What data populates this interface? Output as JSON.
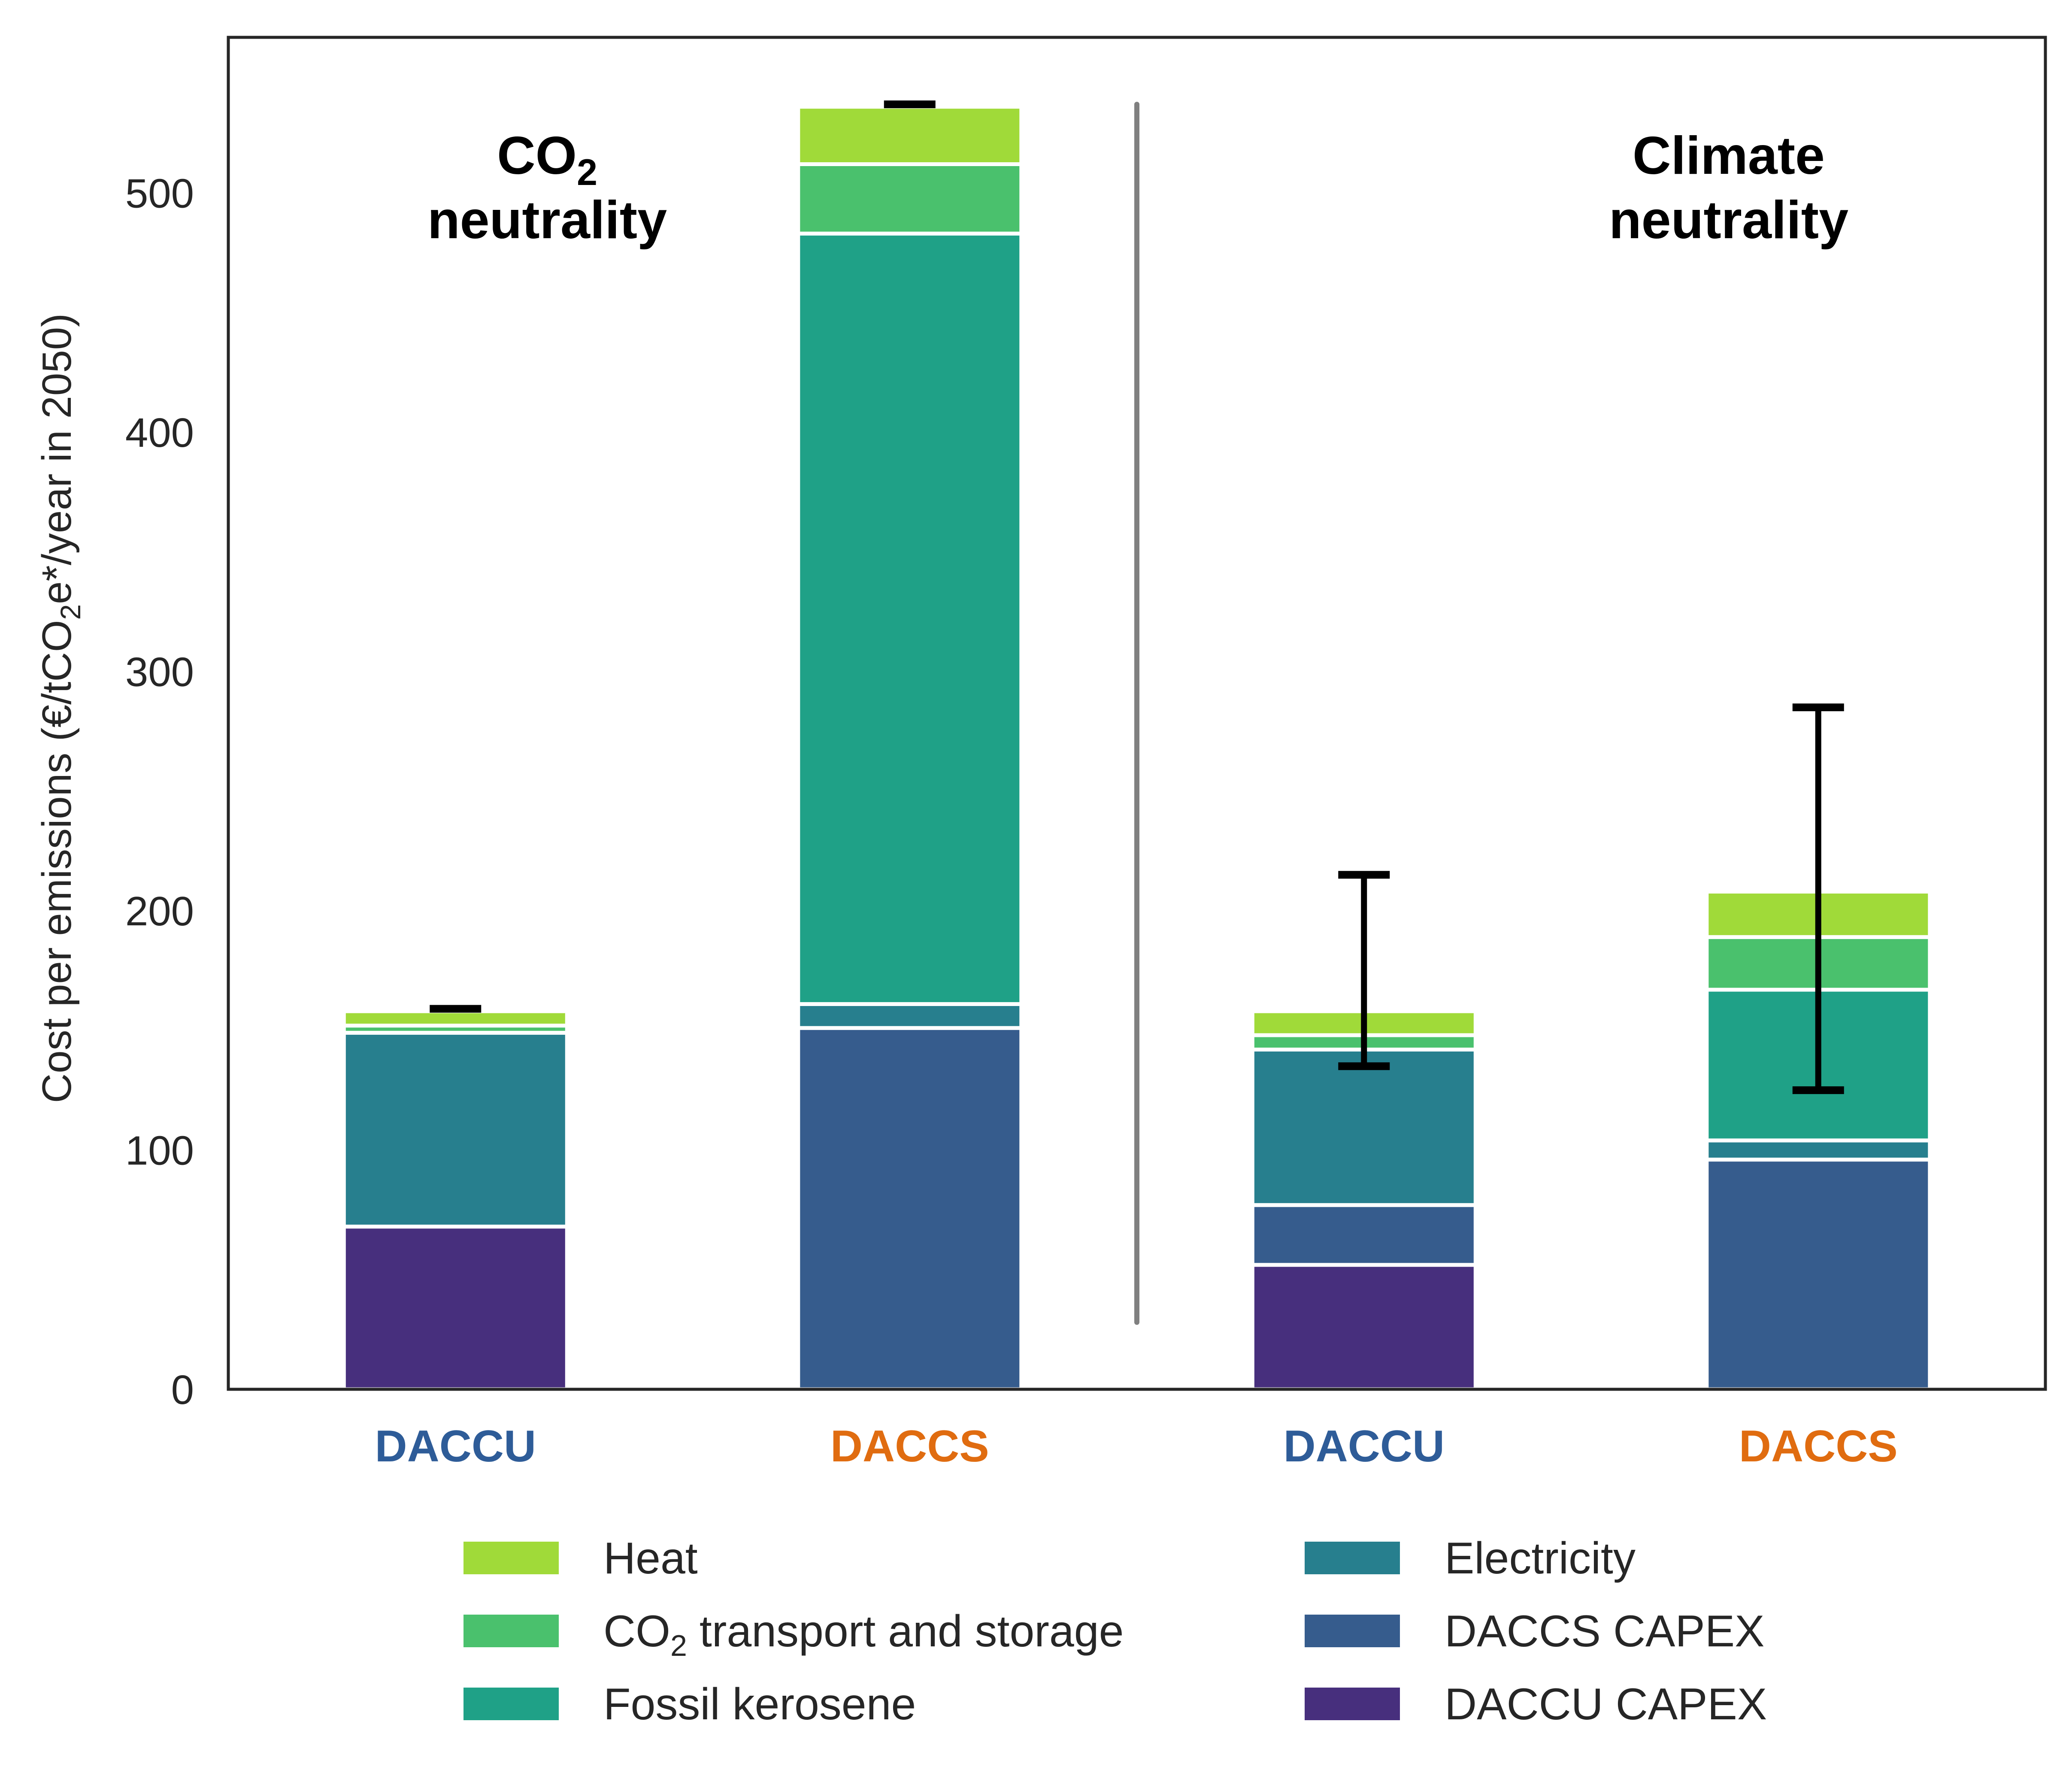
{
  "chart_data": {
    "type": "bar",
    "stacked": true,
    "title": "",
    "xlabel": "",
    "ylabel_parts": [
      "Cost per emissions (€/tCO",
      "2",
      "e*/year in 2050)"
    ],
    "ylim": [
      0,
      565
    ],
    "yticks": [
      "0",
      "100",
      "200",
      "300",
      "400",
      "500"
    ],
    "grid": false,
    "categories": [
      {
        "label": "DACCU",
        "color": "#2e5c98"
      },
      {
        "label": "DACCS",
        "color": "#e06c10"
      },
      {
        "label": "DACCU",
        "color": "#2e5c98"
      },
      {
        "label": "DACCS",
        "color": "#e06c10"
      }
    ],
    "group_titles": [
      {
        "parts": [
          "CO",
          "2"
        ],
        "line2": "neutrality"
      },
      {
        "parts": [
          "Climate"
        ],
        "line2": "neutrality"
      }
    ],
    "series": [
      {
        "name": "DACCU CAPEX",
        "color": "#472f7d",
        "values": [
          68,
          0,
          52,
          0
        ]
      },
      {
        "name": "DACCS CAPEX",
        "color": "#365c8d",
        "values": [
          0,
          151,
          25,
          96
        ]
      },
      {
        "name": "Electricity",
        "color": "#277f8e",
        "values": [
          81,
          10,
          65,
          8
        ]
      },
      {
        "name": "Fossil kerosene",
        "color": "#1fa187",
        "values": [
          0,
          322,
          0,
          63
        ]
      },
      {
        "name": "CO2 transport and storage",
        "color": "#4ac16d",
        "values": [
          3,
          29,
          6,
          22
        ]
      },
      {
        "name": "Heat",
        "color": "#a0da39",
        "values": [
          6,
          24,
          10,
          19
        ]
      }
    ],
    "error_bars": [
      {
        "low": 159,
        "high": 159
      },
      {
        "low": 537,
        "high": 537
      },
      {
        "low": 135,
        "high": 215
      },
      {
        "low": 125,
        "high": 285
      }
    ],
    "divider": {
      "from": 28,
      "to": 537,
      "color": "#808080"
    },
    "legend": {
      "placement": "bottom",
      "columns": [
        [
          {
            "series": "Heat",
            "parts": [
              "Heat"
            ]
          },
          {
            "series": "CO2 transport and storage",
            "parts": [
              "CO",
              "2",
              " transport and storage"
            ]
          },
          {
            "series": "Fossil kerosene",
            "parts": [
              "Fossil kerosene"
            ]
          }
        ],
        [
          {
            "series": "Electricity",
            "parts": [
              "Electricity"
            ]
          },
          {
            "series": "DACCS CAPEX",
            "parts": [
              "DACCS CAPEX"
            ]
          },
          {
            "series": "DACCU CAPEX",
            "parts": [
              "DACCU CAPEX"
            ]
          }
        ]
      ]
    }
  }
}
